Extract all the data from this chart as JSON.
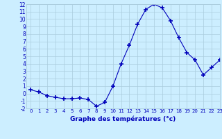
{
  "x": [
    0,
    1,
    2,
    3,
    4,
    5,
    6,
    7,
    8,
    9,
    10,
    11,
    12,
    13,
    14,
    15,
    16,
    17,
    18,
    19,
    20,
    21,
    22,
    23
  ],
  "y": [
    0.5,
    0.2,
    -0.3,
    -0.5,
    -0.7,
    -0.7,
    -0.6,
    -0.8,
    -1.7,
    -1.2,
    1.0,
    4.0,
    6.5,
    9.3,
    11.3,
    12.0,
    11.5,
    9.8,
    7.5,
    5.5,
    4.5,
    2.5,
    3.5,
    4.5
  ],
  "line_color": "#0000bb",
  "marker": "+",
  "marker_size": 4,
  "bg_color": "#cceeff",
  "grid_color": "#aaccdd",
  "xlabel": "Graphe des températures (°c)",
  "ylim": [
    -2,
    12
  ],
  "xlim": [
    -0.5,
    23
  ],
  "yticks": [
    -2,
    -1,
    0,
    1,
    2,
    3,
    4,
    5,
    6,
    7,
    8,
    9,
    10,
    11,
    12
  ],
  "xticks": [
    0,
    1,
    2,
    3,
    4,
    5,
    6,
    7,
    8,
    9,
    10,
    11,
    12,
    13,
    14,
    15,
    16,
    17,
    18,
    19,
    20,
    21,
    22,
    23
  ]
}
